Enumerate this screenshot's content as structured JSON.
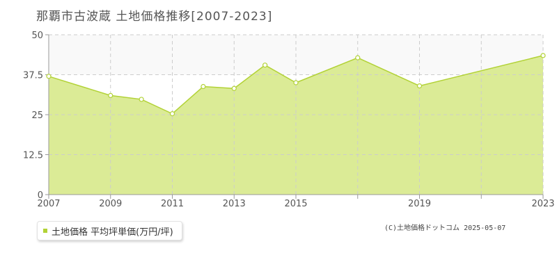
{
  "title": "那覇市古波蔵 土地価格推移[2007-2023]",
  "legend": {
    "label": "土地価格 平均坪単価(万円/坪)"
  },
  "copyright": "(C)土地価格ドットコム 2025-05-07",
  "colors": {
    "area_fill": "#dbeb96",
    "line": "#b2d236",
    "point_fill": "#ffffff",
    "grid": "#cccccc",
    "axis": "#999999",
    "band": "#f9f9f9"
  },
  "chart_data": {
    "type": "area",
    "title": "那覇市古波蔵 土地価格推移[2007-2023]",
    "x": [
      2007,
      2009,
      2010,
      2011,
      2012,
      2013,
      2014,
      2015,
      2017,
      2019,
      2023
    ],
    "series": [
      {
        "name": "土地価格 平均坪単価(万円/坪)",
        "values": [
          37.0,
          31.0,
          29.8,
          25.3,
          33.8,
          33.2,
          40.5,
          35.0,
          42.8,
          34.0,
          43.5
        ]
      }
    ],
    "xlim": [
      2007,
      2023
    ],
    "ylim": [
      0,
      50
    ],
    "xticks": [
      2007,
      2009,
      2011,
      2013,
      2015,
      2019,
      2023
    ],
    "xgrid": [
      2007,
      2009,
      2011,
      2013,
      2015,
      2017,
      2019,
      2021,
      2023
    ],
    "yticks": [
      0,
      12.5,
      25,
      37.5,
      50
    ],
    "ytick_labels": [
      "0",
      "12.5",
      "25",
      "37.5",
      "50"
    ],
    "grid": true,
    "legend_position": "bottom-left"
  }
}
